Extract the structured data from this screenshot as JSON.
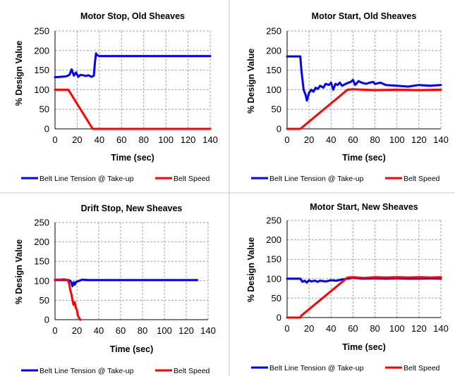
{
  "chart_data": [
    {
      "type": "line",
      "title": "Motor Stop, Old Sheaves",
      "xlabel": "Time (sec)",
      "ylabel": "% Design Value",
      "xlim": [
        0,
        140
      ],
      "ylim": [
        0,
        250
      ],
      "xticks": [
        0,
        20,
        40,
        60,
        80,
        100,
        120,
        140
      ],
      "yticks": [
        0,
        50,
        100,
        150,
        200,
        250
      ],
      "grid": true,
      "legend_position": "bottom",
      "series": [
        {
          "name": "Belt Line Tension @ Take-up",
          "color": "#0000ff",
          "x": [
            0,
            5,
            10,
            13,
            15,
            17,
            19,
            21,
            23,
            25,
            28,
            30,
            33,
            35,
            36,
            37,
            38,
            40,
            60,
            100,
            140
          ],
          "y": [
            132,
            133,
            134,
            138,
            152,
            136,
            144,
            133,
            138,
            137,
            135,
            137,
            133,
            136,
            170,
            193,
            188,
            186,
            186,
            186,
            186
          ]
        },
        {
          "name": "Belt Speed",
          "color": "#ff0000",
          "x": [
            0,
            12,
            34,
            35,
            60,
            100,
            140
          ],
          "y": [
            100,
            100,
            0,
            0,
            0,
            0,
            0
          ]
        }
      ]
    },
    {
      "type": "line",
      "title": "Motor Start, Old Sheaves",
      "xlabel": "Time (sec)",
      "ylabel": "% Design Value",
      "xlim": [
        0,
        140
      ],
      "ylim": [
        0,
        250
      ],
      "xticks": [
        0,
        20,
        40,
        60,
        80,
        100,
        120,
        140
      ],
      "yticks": [
        0,
        50,
        100,
        150,
        200,
        250
      ],
      "grid": true,
      "legend_position": "bottom",
      "series": [
        {
          "name": "Belt Line Tension @ Take-up",
          "color": "#0000ff",
          "x": [
            0,
            12,
            13,
            15,
            17,
            18,
            20,
            22,
            24,
            26,
            28,
            30,
            33,
            35,
            38,
            40,
            42,
            44,
            46,
            48,
            50,
            55,
            58,
            60,
            62,
            65,
            68,
            72,
            75,
            78,
            80,
            85,
            90,
            100,
            110,
            120,
            130,
            140
          ],
          "y": [
            185,
            185,
            150,
            100,
            85,
            72,
            92,
            100,
            95,
            105,
            102,
            110,
            105,
            115,
            112,
            118,
            100,
            115,
            112,
            118,
            110,
            117,
            120,
            125,
            112,
            122,
            118,
            115,
            118,
            120,
            115,
            118,
            112,
            110,
            108,
            112,
            110,
            112
          ]
        },
        {
          "name": "Belt Speed",
          "color": "#ff0000",
          "x": [
            0,
            12,
            55,
            60,
            80,
            100,
            120,
            140
          ],
          "y": [
            0,
            0,
            100,
            101,
            99,
            100,
            99,
            100
          ]
        }
      ]
    },
    {
      "type": "line",
      "title": "Drift Stop, New Sheaves",
      "xlabel": "Time (sec)",
      "ylabel": "% Design Value",
      "xlim": [
        0,
        140
      ],
      "ylim": [
        0,
        250
      ],
      "xticks": [
        0,
        20,
        40,
        60,
        80,
        100,
        120,
        140
      ],
      "yticks": [
        0,
        50,
        100,
        150,
        200,
        250
      ],
      "grid": true,
      "legend_position": "bottom",
      "series": [
        {
          "name": "Belt Line Tension @ Take-up",
          "color": "#0000ff",
          "x": [
            0,
            10,
            12,
            14,
            15,
            16,
            17,
            18,
            19,
            20,
            22,
            25,
            30,
            60,
            100,
            130
          ],
          "y": [
            102,
            102,
            102,
            100,
            95,
            86,
            96,
            90,
            97,
            98,
            100,
            103,
            102,
            102,
            102,
            102
          ]
        },
        {
          "name": "Belt Speed",
          "color": "#ff0000",
          "x": [
            0,
            5,
            8,
            10,
            12,
            13,
            14,
            15,
            16,
            17,
            18,
            19,
            20,
            21,
            22,
            23
          ],
          "y": [
            103,
            103,
            104,
            103,
            100,
            92,
            75,
            65,
            50,
            38,
            45,
            30,
            25,
            10,
            5,
            0
          ]
        }
      ]
    },
    {
      "type": "line",
      "title": "Motor Start, New Sheaves",
      "xlabel": "Time (sec)",
      "ylabel": "% Design Value",
      "xlim": [
        0,
        140
      ],
      "ylim": [
        0,
        250
      ],
      "xticks": [
        0,
        20,
        40,
        60,
        80,
        100,
        120,
        140
      ],
      "yticks": [
        0,
        50,
        100,
        150,
        200,
        250
      ],
      "grid": true,
      "legend_position": "bottom",
      "series": [
        {
          "name": "Belt Line Tension @ Take-up",
          "color": "#0000ff",
          "x": [
            0,
            10,
            12,
            14,
            16,
            18,
            20,
            22,
            25,
            28,
            30,
            35,
            40,
            45,
            50,
            55,
            60,
            70,
            80,
            90,
            100,
            110,
            120,
            130,
            140
          ],
          "y": [
            100,
            100,
            100,
            92,
            95,
            90,
            96,
            93,
            95,
            92,
            95,
            93,
            96,
            95,
            98,
            100,
            102,
            100,
            101,
            100,
            101,
            100,
            100,
            101,
            100
          ]
        },
        {
          "name": "Belt Speed",
          "color": "#ff0000",
          "x": [
            0,
            12,
            13,
            55,
            60,
            70,
            80,
            90,
            100,
            110,
            120,
            130,
            140
          ],
          "y": [
            0,
            0,
            5,
            103,
            104,
            102,
            104,
            103,
            104,
            103,
            104,
            103,
            104
          ]
        }
      ]
    }
  ]
}
